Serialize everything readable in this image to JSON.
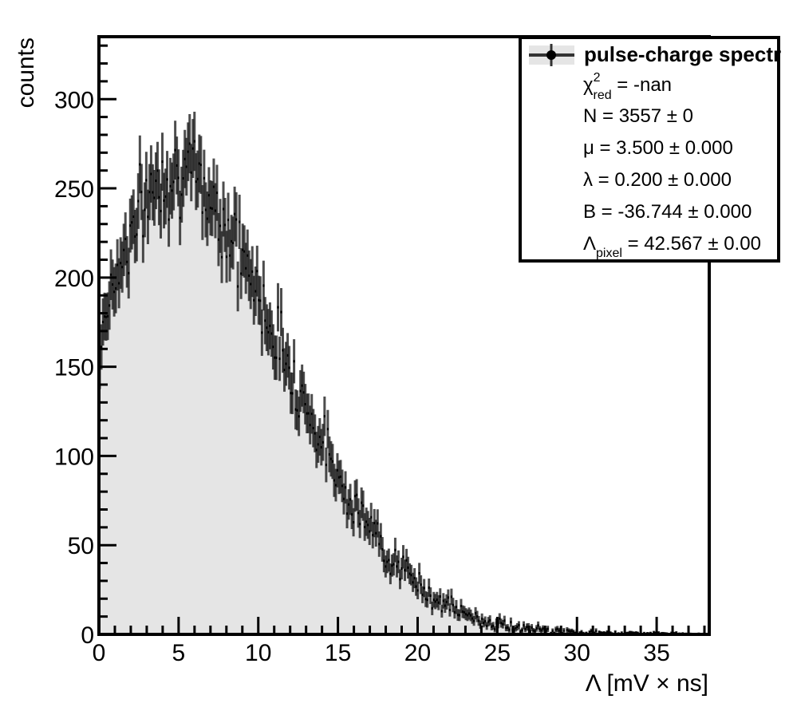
{
  "chart_data": {
    "type": "bar",
    "xlabel": "Λ [mV × ns]",
    "ylabel": "counts",
    "xlim": [
      0,
      38.3
    ],
    "ylim": [
      0,
      335
    ],
    "xticks": [
      "0",
      "5",
      "10",
      "15",
      "20",
      "25",
      "30",
      "35"
    ],
    "yticks": [
      "0",
      "50",
      "100",
      "150",
      "200",
      "250",
      "300"
    ],
    "grid": false,
    "legend_placement": "top-right",
    "series": [
      {
        "name": "pulse-charge spectr",
        "style": "histogram with error bars",
        "fill_color": "#e5e5e5",
        "line_color": "#000000",
        "profile_x": [
          0,
          0.2,
          0.5,
          1,
          1.5,
          2,
          2.5,
          3,
          3.5,
          4,
          4.5,
          5,
          5.5,
          6,
          6.5,
          7,
          7.5,
          8,
          8.5,
          9,
          9.5,
          10,
          11,
          12,
          13,
          14,
          15,
          16,
          17,
          18,
          19,
          20,
          21,
          22,
          23,
          24,
          25,
          26,
          27,
          28,
          29,
          30,
          31,
          32,
          33,
          34,
          35,
          36,
          37,
          38.2
        ],
        "profile_y": [
          150,
          172,
          185,
          200,
          212,
          225,
          235,
          245,
          252,
          258,
          260,
          260,
          258,
          255,
          250,
          245,
          238,
          230,
          221,
          212,
          200,
          190,
          170,
          150,
          128,
          108,
          90,
          73,
          60,
          47,
          37,
          28,
          21,
          16,
          11,
          8,
          6,
          4,
          3,
          2,
          1.5,
          1,
          0.8,
          0.6,
          0.5,
          0.4,
          0.3,
          0.2,
          0.1,
          0
        ]
      }
    ],
    "legend": {
      "entries": [
        {
          "label": "χ",
          "sup": "2",
          "sub": "red",
          "value": " = -nan"
        },
        {
          "label": "N",
          "value": " = 3557 ± 0"
        },
        {
          "label": "μ",
          "value": " = 3.500 ± 0.000"
        },
        {
          "label": "λ",
          "value": " = 0.200 ± 0.000"
        },
        {
          "label": "B",
          "value": " = -36.744 ± 0.000"
        },
        {
          "label": "Λ",
          "sub": "pixel",
          "value": " = 42.567 ± 0.00"
        }
      ]
    }
  }
}
